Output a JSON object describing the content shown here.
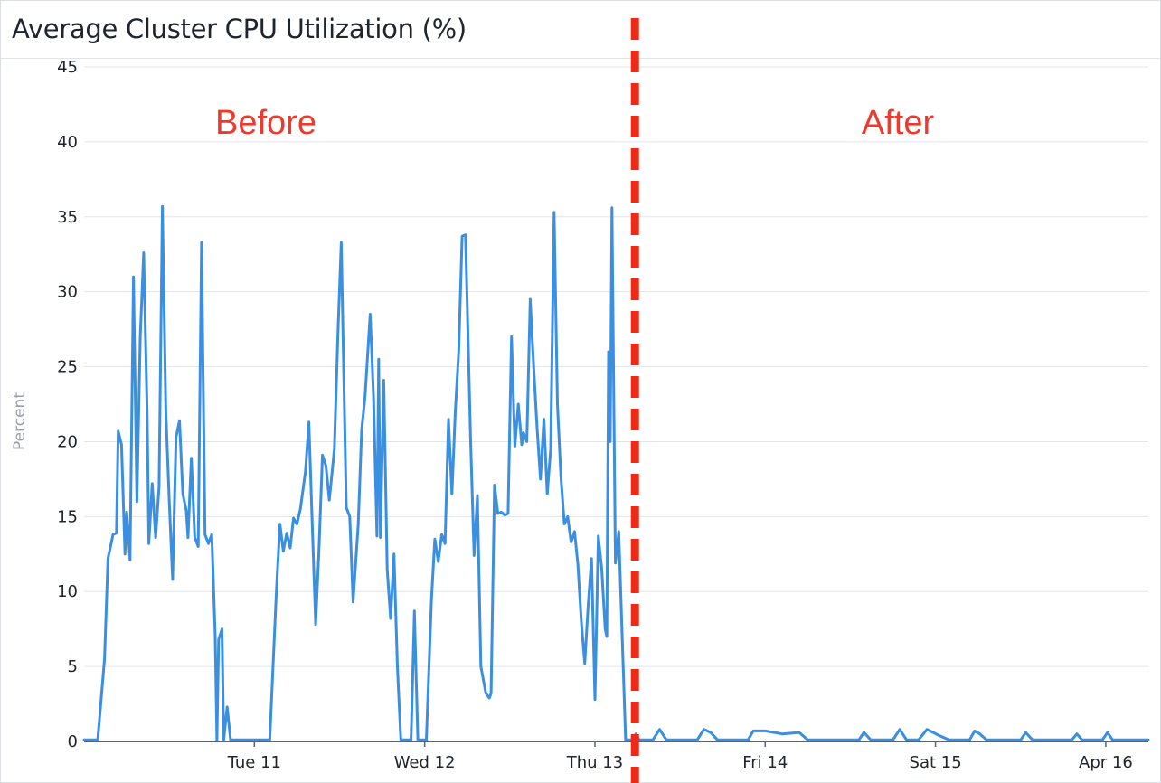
{
  "chart_data": {
    "type": "line",
    "title": "Average Cluster CPU Utilization (%)",
    "ylabel": "Percent",
    "xlabel": "",
    "ylim": [
      0,
      45
    ],
    "y_ticks": [
      0,
      5,
      10,
      15,
      20,
      25,
      30,
      35,
      40,
      45
    ],
    "x_ticks": [
      {
        "label": "Tue 11",
        "x": 1.0
      },
      {
        "label": "Wed 12",
        "x": 2.0
      },
      {
        "label": "Thu 13",
        "x": 3.0
      },
      {
        "label": "Fri 14",
        "x": 4.0
      },
      {
        "label": "Sat 15",
        "x": 5.0
      },
      {
        "label": "Apr 16",
        "x": 6.0
      }
    ],
    "x_unit": "days (Mon 10 = 0)",
    "xlim": [
      0.0,
      6.25
    ],
    "grid": true,
    "series": [
      {
        "name": "",
        "color": "#3b8fe0",
        "points": [
          [
            0.0,
            0.1
          ],
          [
            0.08,
            0.1
          ],
          [
            0.12,
            5.5
          ],
          [
            0.14,
            12.2
          ],
          [
            0.17,
            13.8
          ],
          [
            0.19,
            13.9
          ],
          [
            0.2,
            20.7
          ],
          [
            0.22,
            19.8
          ],
          [
            0.24,
            12.5
          ],
          [
            0.25,
            15.3
          ],
          [
            0.27,
            12.1
          ],
          [
            0.29,
            31.0
          ],
          [
            0.31,
            16.0
          ],
          [
            0.33,
            27.0
          ],
          [
            0.35,
            32.6
          ],
          [
            0.37,
            22.0
          ],
          [
            0.38,
            13.2
          ],
          [
            0.4,
            17.2
          ],
          [
            0.42,
            13.6
          ],
          [
            0.44,
            17.0
          ],
          [
            0.46,
            35.7
          ],
          [
            0.48,
            22.0
          ],
          [
            0.5,
            16.0
          ],
          [
            0.52,
            10.8
          ],
          [
            0.54,
            20.3
          ],
          [
            0.56,
            21.4
          ],
          [
            0.58,
            16.5
          ],
          [
            0.6,
            15.4
          ],
          [
            0.61,
            13.6
          ],
          [
            0.63,
            18.9
          ],
          [
            0.65,
            13.6
          ],
          [
            0.67,
            13.0
          ],
          [
            0.69,
            33.3
          ],
          [
            0.71,
            13.8
          ],
          [
            0.73,
            13.2
          ],
          [
            0.75,
            13.8
          ],
          [
            0.77,
            7.0
          ],
          [
            0.78,
            0.1
          ],
          [
            0.79,
            6.8
          ],
          [
            0.81,
            7.5
          ],
          [
            0.82,
            0.1
          ],
          [
            0.84,
            2.3
          ],
          [
            0.86,
            0.1
          ],
          [
            0.9,
            0.1
          ],
          [
            0.96,
            0.1
          ],
          [
            1.05,
            0.1
          ],
          [
            1.09,
            0.1
          ],
          [
            1.13,
            10.2
          ],
          [
            1.15,
            14.5
          ],
          [
            1.17,
            12.7
          ],
          [
            1.19,
            13.9
          ],
          [
            1.21,
            12.9
          ],
          [
            1.23,
            14.9
          ],
          [
            1.25,
            14.5
          ],
          [
            1.27,
            15.5
          ],
          [
            1.3,
            18.0
          ],
          [
            1.32,
            21.3
          ],
          [
            1.34,
            14.5
          ],
          [
            1.36,
            7.8
          ],
          [
            1.38,
            13.0
          ],
          [
            1.4,
            19.1
          ],
          [
            1.42,
            18.4
          ],
          [
            1.44,
            16.1
          ],
          [
            1.47,
            19.5
          ],
          [
            1.49,
            27.0
          ],
          [
            1.51,
            33.3
          ],
          [
            1.54,
            15.6
          ],
          [
            1.56,
            15.0
          ],
          [
            1.58,
            9.3
          ],
          [
            1.61,
            14.5
          ],
          [
            1.63,
            20.8
          ],
          [
            1.65,
            23.0
          ],
          [
            1.68,
            28.5
          ],
          [
            1.7,
            23.0
          ],
          [
            1.72,
            13.7
          ],
          [
            1.73,
            25.5
          ],
          [
            1.74,
            13.6
          ],
          [
            1.76,
            24.1
          ],
          [
            1.78,
            11.5
          ],
          [
            1.8,
            8.2
          ],
          [
            1.82,
            12.5
          ],
          [
            1.84,
            5.0
          ],
          [
            1.86,
            0.1
          ],
          [
            1.88,
            0.1
          ],
          [
            1.92,
            0.1
          ],
          [
            1.94,
            8.7
          ],
          [
            1.96,
            0.1
          ],
          [
            2.01,
            0.1
          ],
          [
            2.04,
            9.5
          ],
          [
            2.06,
            13.5
          ],
          [
            2.08,
            12.0
          ],
          [
            2.1,
            13.8
          ],
          [
            2.12,
            13.2
          ],
          [
            2.14,
            21.5
          ],
          [
            2.16,
            16.5
          ],
          [
            2.18,
            22.0
          ],
          [
            2.2,
            26.0
          ],
          [
            2.22,
            33.7
          ],
          [
            2.24,
            33.8
          ],
          [
            2.27,
            20.0
          ],
          [
            2.29,
            12.4
          ],
          [
            2.31,
            16.4
          ],
          [
            2.33,
            5.0
          ],
          [
            2.36,
            3.2
          ],
          [
            2.38,
            2.9
          ],
          [
            2.39,
            3.2
          ],
          [
            2.41,
            17.1
          ],
          [
            2.43,
            15.2
          ],
          [
            2.45,
            15.3
          ],
          [
            2.47,
            15.1
          ],
          [
            2.49,
            15.2
          ],
          [
            2.51,
            27.0
          ],
          [
            2.53,
            19.7
          ],
          [
            2.55,
            22.5
          ],
          [
            2.57,
            19.8
          ],
          [
            2.58,
            20.6
          ],
          [
            2.6,
            20.0
          ],
          [
            2.62,
            29.5
          ],
          [
            2.64,
            25.0
          ],
          [
            2.66,
            21.0
          ],
          [
            2.68,
            17.5
          ],
          [
            2.7,
            21.5
          ],
          [
            2.72,
            16.5
          ],
          [
            2.74,
            19.5
          ],
          [
            2.76,
            35.3
          ],
          [
            2.78,
            22.5
          ],
          [
            2.8,
            17.7
          ],
          [
            2.82,
            14.5
          ],
          [
            2.84,
            15.0
          ],
          [
            2.86,
            13.3
          ],
          [
            2.88,
            14.0
          ],
          [
            2.9,
            11.8
          ],
          [
            2.92,
            8.0
          ],
          [
            2.94,
            5.2
          ],
          [
            2.96,
            9.0
          ],
          [
            2.98,
            12.2
          ],
          [
            3.0,
            2.8
          ],
          [
            3.02,
            13.7
          ],
          [
            3.04,
            11.5
          ],
          [
            3.06,
            7.5
          ],
          [
            3.07,
            7.0
          ],
          [
            3.08,
            26.0
          ],
          [
            3.09,
            20.0
          ],
          [
            3.1,
            35.6
          ],
          [
            3.12,
            11.9
          ],
          [
            3.14,
            14.0
          ],
          [
            3.16,
            7.0
          ],
          [
            3.18,
            0.1
          ],
          [
            3.22,
            0.1
          ],
          [
            3.24,
            0.5
          ],
          [
            3.26,
            0.1
          ],
          [
            3.3,
            0.1
          ],
          [
            3.34,
            0.1
          ],
          [
            3.38,
            0.8
          ],
          [
            3.42,
            0.1
          ],
          [
            3.55,
            0.1
          ],
          [
            3.6,
            0.1
          ],
          [
            3.64,
            0.8
          ],
          [
            3.68,
            0.6
          ],
          [
            3.72,
            0.1
          ],
          [
            3.85,
            0.1
          ],
          [
            3.9,
            0.1
          ],
          [
            3.93,
            0.7
          ],
          [
            4.0,
            0.7
          ],
          [
            4.1,
            0.5
          ],
          [
            4.2,
            0.6
          ],
          [
            4.25,
            0.1
          ],
          [
            4.4,
            0.1
          ],
          [
            4.55,
            0.1
          ],
          [
            4.58,
            0.6
          ],
          [
            4.62,
            0.1
          ],
          [
            4.75,
            0.1
          ],
          [
            4.79,
            0.8
          ],
          [
            4.83,
            0.1
          ],
          [
            4.9,
            0.1
          ],
          [
            4.95,
            0.8
          ],
          [
            5.02,
            0.4
          ],
          [
            5.08,
            0.1
          ],
          [
            5.2,
            0.1
          ],
          [
            5.23,
            0.7
          ],
          [
            5.26,
            0.5
          ],
          [
            5.3,
            0.1
          ],
          [
            5.5,
            0.1
          ],
          [
            5.53,
            0.6
          ],
          [
            5.57,
            0.1
          ],
          [
            5.7,
            0.1
          ],
          [
            5.8,
            0.1
          ],
          [
            5.83,
            0.5
          ],
          [
            5.86,
            0.1
          ],
          [
            5.98,
            0.1
          ],
          [
            6.01,
            0.6
          ],
          [
            6.04,
            0.1
          ],
          [
            6.1,
            0.1
          ],
          [
            6.25,
            0.1
          ]
        ]
      }
    ],
    "annotations": [
      {
        "text": "Before",
        "color": "#ee3a2c"
      },
      {
        "text": "After",
        "color": "#ee3a2c"
      }
    ],
    "divider": {
      "x": 3.235,
      "style": "dashed",
      "color": "#ee2a16"
    }
  }
}
